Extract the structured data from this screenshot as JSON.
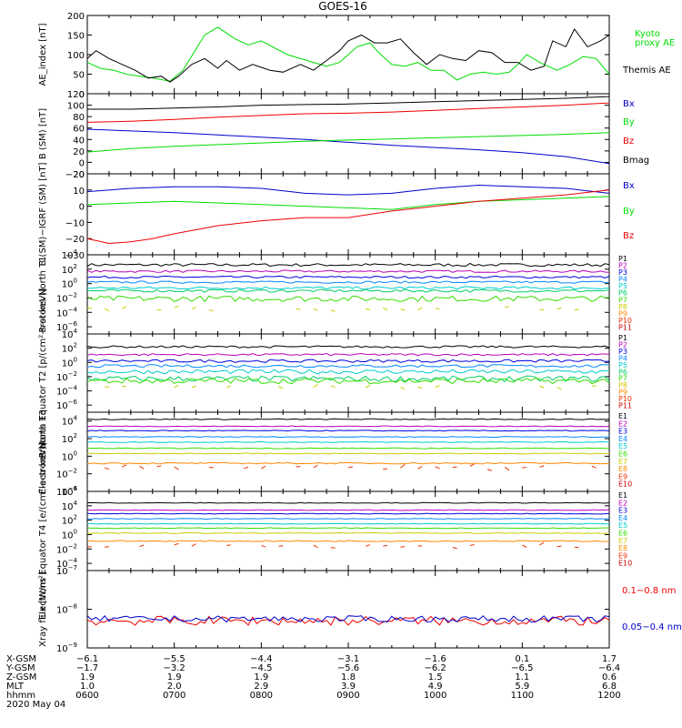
{
  "title": "GOES-16",
  "chart_data": [
    {
      "type": "line",
      "ylabel": "AE_index [nT]",
      "ylim": [
        0,
        200
      ],
      "yticks": [
        {
          "v": 200,
          "t": "200"
        },
        {
          "v": 150,
          "t": "150"
        },
        {
          "v": 100,
          "t": "100"
        },
        {
          "v": 50,
          "t": "50"
        },
        {
          "v": 0,
          "t": "0"
        }
      ],
      "series": [
        {
          "name": "Kyoto proxy AE",
          "color": "#00dd00",
          "x": [
            6.0,
            6.15,
            6.3,
            6.45,
            6.6,
            6.75,
            6.95,
            7.1,
            7.35,
            7.5,
            7.7,
            7.85,
            8.0,
            8.3,
            8.6,
            8.75,
            8.9,
            9.1,
            9.25,
            9.35,
            9.5,
            9.65,
            9.8,
            9.95,
            10.1,
            10.25,
            10.4,
            10.55,
            10.7,
            10.85,
            10.95,
            11.05,
            11.2,
            11.4,
            11.55,
            11.7,
            11.85,
            12.0
          ],
          "y": [
            80,
            65,
            60,
            50,
            45,
            40,
            32,
            60,
            150,
            170,
            140,
            125,
            135,
            100,
            80,
            70,
            80,
            120,
            130,
            105,
            75,
            70,
            80,
            60,
            60,
            35,
            50,
            55,
            50,
            55,
            75,
            100,
            80,
            60,
            75,
            95,
            90,
            50
          ]
        },
        {
          "name": "Themis AE",
          "color": "#000000",
          "x": [
            6.0,
            6.1,
            6.25,
            6.4,
            6.55,
            6.7,
            6.85,
            6.95,
            7.05,
            7.2,
            7.35,
            7.5,
            7.6,
            7.75,
            7.9,
            8.1,
            8.25,
            8.45,
            8.6,
            8.75,
            8.9,
            9.0,
            9.15,
            9.3,
            9.45,
            9.6,
            9.75,
            9.9,
            10.05,
            10.2,
            10.35,
            10.5,
            10.65,
            10.8,
            10.95,
            11.1,
            11.25,
            11.35,
            11.5,
            11.6,
            11.75,
            11.9,
            12.0
          ],
          "y": [
            90,
            110,
            90,
            75,
            60,
            40,
            45,
            30,
            45,
            75,
            90,
            65,
            85,
            60,
            75,
            60,
            55,
            75,
            60,
            85,
            110,
            135,
            150,
            130,
            130,
            140,
            105,
            75,
            100,
            90,
            85,
            110,
            105,
            80,
            80,
            60,
            70,
            135,
            120,
            165,
            120,
            135,
            150
          ]
        }
      ]
    },
    {
      "type": "line",
      "ylabel": "B (SM) [nT]",
      "ylim": [
        -20,
        120
      ],
      "yticks": [
        {
          "v": 120,
          "t": "120"
        },
        {
          "v": 100,
          "t": "100"
        },
        {
          "v": 80,
          "t": "80"
        },
        {
          "v": 60,
          "t": "60"
        },
        {
          "v": 40,
          "t": "40"
        },
        {
          "v": 20,
          "t": "20"
        },
        {
          "v": 0,
          "t": "0"
        },
        {
          "v": -20,
          "t": "−20"
        }
      ],
      "series": [
        {
          "name": "Bx",
          "color": "#0000cc",
          "x": [
            6.0,
            6.5,
            7.0,
            7.5,
            8.0,
            8.5,
            9.0,
            9.5,
            10.0,
            10.5,
            11.0,
            11.5,
            12.0
          ],
          "y": [
            58,
            55,
            52,
            48,
            44,
            40,
            35,
            30,
            26,
            22,
            17,
            10,
            -2
          ]
        },
        {
          "name": "By",
          "color": "#00dd00",
          "x": [
            6.0,
            6.5,
            7.0,
            7.5,
            8.0,
            8.5,
            9.0,
            9.5,
            10.0,
            10.5,
            11.0,
            11.5,
            12.0
          ],
          "y": [
            18,
            24,
            28,
            31,
            34,
            37,
            39,
            41,
            43,
            45,
            47,
            49,
            52
          ]
        },
        {
          "name": "Bz",
          "color": "#ee0000",
          "x": [
            6.0,
            6.5,
            7.0,
            7.5,
            8.0,
            8.5,
            9.0,
            9.5,
            10.0,
            10.5,
            11.0,
            11.5,
            12.0
          ],
          "y": [
            70,
            72,
            75,
            79,
            82,
            85,
            86,
            88,
            91,
            94,
            97,
            100,
            104
          ]
        },
        {
          "name": "Bmag",
          "color": "#000000",
          "x": [
            6.0,
            6.5,
            7.0,
            7.5,
            8.0,
            8.5,
            9.0,
            9.5,
            10.0,
            10.5,
            11.0,
            11.5,
            12.0
          ],
          "y": [
            93,
            93,
            95,
            97,
            100,
            101,
            102,
            104,
            106,
            108,
            110,
            112,
            115
          ]
        }
      ]
    },
    {
      "type": "line",
      "ylabel": "B (SM)−IGRF (SM) [nT]",
      "ylim": [
        -30,
        20
      ],
      "yticks": [
        {
          "v": 20,
          "t": "20"
        },
        {
          "v": 10,
          "t": "10"
        },
        {
          "v": 0,
          "t": "0"
        },
        {
          "v": -10,
          "t": "−10"
        },
        {
          "v": -20,
          "t": "−20"
        },
        {
          "v": -30,
          "t": "−30"
        }
      ],
      "series": [
        {
          "name": "Bx",
          "color": "#0000cc",
          "x": [
            6.0,
            6.5,
            7.0,
            7.5,
            8.0,
            8.5,
            9.0,
            9.5,
            10.0,
            10.5,
            11.0,
            11.5,
            12.0
          ],
          "y": [
            9,
            11,
            12,
            12,
            11,
            8,
            7,
            8,
            11,
            13,
            12,
            11,
            8
          ]
        },
        {
          "name": "By",
          "color": "#00dd00",
          "x": [
            6.0,
            6.5,
            7.0,
            7.5,
            8.0,
            8.5,
            9.0,
            9.5,
            10.0,
            10.5,
            11.0,
            11.5,
            12.0
          ],
          "y": [
            1,
            2,
            3,
            2,
            1,
            0,
            -1,
            -2,
            1,
            3,
            4,
            5,
            6
          ]
        },
        {
          "name": "Bz",
          "color": "#ee0000",
          "x": [
            6.0,
            6.25,
            6.5,
            6.75,
            7.0,
            7.5,
            8.0,
            8.5,
            9.0,
            9.5,
            10.0,
            10.5,
            11.0,
            11.5,
            12.0
          ],
          "y": [
            -20,
            -23,
            -22,
            -20,
            -17,
            -12,
            -9,
            -7,
            -7,
            -3,
            0,
            3,
            5,
            7,
            10
          ]
        }
      ]
    },
    {
      "type": "line",
      "log": true,
      "ylabel": "Protons North T1",
      "ylim": [
        -7,
        4
      ],
      "yticks": [
        {
          "v": 4,
          "t": "10",
          "e": "4"
        },
        {
          "v": 2,
          "t": "10",
          "e": "2"
        },
        {
          "v": 0,
          "t": "10",
          "e": "0"
        },
        {
          "v": -2,
          "t": "10",
          "e": "−2"
        },
        {
          "v": -4,
          "t": "10",
          "e": "−4"
        },
        {
          "v": -6,
          "t": "10",
          "e": "−6"
        }
      ],
      "channels": [
        {
          "name": "P1",
          "color": "#000000",
          "base": 2.6,
          "noise": 0.2
        },
        {
          "name": "P2",
          "color": "#bb00bb",
          "base": 1.7,
          "noise": 0.15
        },
        {
          "name": "P3",
          "color": "#0000dd",
          "base": 0.9,
          "noise": 0.15
        },
        {
          "name": "P4",
          "color": "#0088ff",
          "base": 0.2,
          "noise": 0.15
        },
        {
          "name": "P5",
          "color": "#00cccc",
          "base": -0.6,
          "noise": 0.2
        },
        {
          "name": "P6",
          "color": "#00cc66",
          "base": -1.0,
          "noise": 0.2
        },
        {
          "name": "P7",
          "color": "#33dd00",
          "base": -2.1,
          "noise": 0.4
        },
        {
          "name": "P8",
          "color": "#cccc00",
          "base": -3.5,
          "noise": 0.2,
          "sparse": true
        },
        {
          "name": "P9",
          "color": "#ff8800",
          "base": -4.5,
          "noise": 0.2,
          "none": true
        },
        {
          "name": "P10",
          "color": "#ee3300",
          "base": -5.5,
          "noise": 0.2,
          "none": true
        },
        {
          "name": "P11",
          "color": "#cc0000",
          "base": -6.5,
          "noise": 0.2,
          "none": true
        }
      ]
    },
    {
      "type": "line",
      "log": true,
      "ylabel": "Protons Equator T2 [p/(cm²-s-sr-keV)]",
      "ylim": [
        -7,
        4
      ],
      "yticks": [
        {
          "v": 4,
          "t": "10",
          "e": "4"
        },
        {
          "v": 2,
          "t": "10",
          "e": "2"
        },
        {
          "v": 0,
          "t": "10",
          "e": "0"
        },
        {
          "v": -2,
          "t": "10",
          "e": "−2"
        },
        {
          "v": -4,
          "t": "10",
          "e": "−4"
        },
        {
          "v": -6,
          "t": "10",
          "e": "−6"
        }
      ],
      "channels": [
        {
          "name": "P1",
          "color": "#000000",
          "base": 2.2,
          "noise": 0.15
        },
        {
          "name": "P2",
          "color": "#bb00bb",
          "base": 1.1,
          "noise": 0.15
        },
        {
          "name": "P3",
          "color": "#0000dd",
          "base": 0.2,
          "noise": 0.2
        },
        {
          "name": "P4",
          "color": "#0088ff",
          "base": -0.5,
          "noise": 0.2
        },
        {
          "name": "P5",
          "color": "#00cccc",
          "base": -1.3,
          "noise": 0.3
        },
        {
          "name": "P6",
          "color": "#00cc66",
          "base": -2.3,
          "noise": 0.4
        },
        {
          "name": "P7",
          "color": "#33dd00",
          "base": -2.6,
          "noise": 0.4
        },
        {
          "name": "P8",
          "color": "#cccc00",
          "base": -3.4,
          "noise": 0.2,
          "sparse": true
        },
        {
          "name": "P9",
          "color": "#ff8800",
          "base": -4.5,
          "noise": 0.2,
          "none": true
        },
        {
          "name": "P10",
          "color": "#ee3300",
          "base": -5.5,
          "noise": 0.2,
          "none": true
        },
        {
          "name": "P11",
          "color": "#cc0000",
          "base": -6.5,
          "noise": 0.2,
          "none": true
        }
      ]
    },
    {
      "type": "line",
      "log": true,
      "ylabel": "Electrons North T3",
      "ylim": [
        -4,
        5
      ],
      "yticks": [
        {
          "v": 4,
          "t": "10",
          "e": "4"
        },
        {
          "v": 2,
          "t": "10",
          "e": "2"
        },
        {
          "v": 0,
          "t": "10",
          "e": "0"
        },
        {
          "v": -2,
          "t": "10",
          "e": "−2"
        },
        {
          "v": -4,
          "t": "10",
          "e": "−4"
        }
      ],
      "channels": [
        {
          "name": "E1",
          "color": "#000000",
          "base": 4.2,
          "noise": 0.05
        },
        {
          "name": "E2",
          "color": "#bb00bb",
          "base": 3.4,
          "noise": 0.05
        },
        {
          "name": "E3",
          "color": "#0000dd",
          "base": 2.9,
          "noise": 0.05
        },
        {
          "name": "E4",
          "color": "#0088ff",
          "base": 2.2,
          "noise": 0.05
        },
        {
          "name": "E5",
          "color": "#00cccc",
          "base": 1.6,
          "noise": 0.05
        },
        {
          "name": "E6",
          "color": "#33dd00",
          "base": 0.9,
          "noise": 0.05
        },
        {
          "name": "E7",
          "color": "#cccc00",
          "base": 0.3,
          "noise": 0.05
        },
        {
          "name": "E8",
          "color": "#ff8800",
          "base": -0.8,
          "noise": 0.08
        },
        {
          "name": "E9",
          "color": "#ee3300",
          "base": -1.3,
          "noise": 0.2,
          "sparse": true
        },
        {
          "name": "E10",
          "color": "#cc0000",
          "base": -3.5,
          "noise": 0.2,
          "none": true
        }
      ]
    },
    {
      "type": "line",
      "log": true,
      "ylabel": "Electrons Equator T4 [e/(cm²-s-sr-keV)]",
      "ylim": [
        -5,
        6
      ],
      "yticks": [
        {
          "v": 6,
          "t": "10",
          "e": "6"
        },
        {
          "v": 4,
          "t": "10",
          "e": "4"
        },
        {
          "v": 2,
          "t": "10",
          "e": "2"
        },
        {
          "v": 0,
          "t": "10",
          "e": "0"
        },
        {
          "v": -2,
          "t": "10",
          "e": "−2"
        },
        {
          "v": -4,
          "t": "10",
          "e": "−4"
        }
      ],
      "channels": [
        {
          "name": "E1",
          "color": "#000000",
          "base": 4.4,
          "noise": 0.05
        },
        {
          "name": "E2",
          "color": "#bb00bb",
          "base": 3.4,
          "noise": 0.05
        },
        {
          "name": "E3",
          "color": "#0000dd",
          "base": 2.9,
          "noise": 0.05
        },
        {
          "name": "E4",
          "color": "#0088ff",
          "base": 2.2,
          "noise": 0.05
        },
        {
          "name": "E5",
          "color": "#00cccc",
          "base": 1.5,
          "noise": 0.05
        },
        {
          "name": "E6",
          "color": "#33dd00",
          "base": 0.9,
          "noise": 0.05
        },
        {
          "name": "E7",
          "color": "#cccc00",
          "base": 0.2,
          "noise": 0.05
        },
        {
          "name": "E8",
          "color": "#ff8800",
          "base": -0.9,
          "noise": 0.08
        },
        {
          "name": "E9",
          "color": "#ee3300",
          "base": -1.6,
          "noise": 0.2,
          "sparse": true
        },
        {
          "name": "E10",
          "color": "#cc0000",
          "base": -3.5,
          "noise": 0.2,
          "none": true
        }
      ]
    },
    {
      "type": "line",
      "log": true,
      "ylabel": "Xray flux [W/m²]",
      "ylim": [
        -9,
        -7
      ],
      "yticks": [
        {
          "v": -7,
          "t": "10",
          "e": "−7"
        },
        {
          "v": -8,
          "t": "10",
          "e": "−8"
        },
        {
          "v": -9,
          "t": "10",
          "e": "−9"
        }
      ],
      "series": [
        {
          "name": "0.1−0.8 nm",
          "color": "#ee0000",
          "base": -8.3,
          "noise": 0.12
        },
        {
          "name": "0.05−0.4 nm",
          "color": "#0000cc",
          "base": -8.25,
          "noise": 0.08
        }
      ]
    }
  ],
  "legends": [
    {
      "panel": 0,
      "items": [
        {
          "text": "Kyoto",
          "color": "#00dd00"
        },
        {
          "text": "proxy AE",
          "color": "#00dd00"
        },
        {
          "text": "Themis AE",
          "color": "#000000"
        }
      ]
    },
    {
      "panel": 1,
      "items": [
        {
          "text": "Bx",
          "color": "#0000cc"
        },
        {
          "text": "By",
          "color": "#00dd00"
        },
        {
          "text": "Bz",
          "color": "#ee0000"
        },
        {
          "text": "Bmag",
          "color": "#000000"
        }
      ]
    },
    {
      "panel": 2,
      "items": [
        {
          "text": "Bx",
          "color": "#0000cc"
        },
        {
          "text": "By",
          "color": "#00dd00"
        },
        {
          "text": "Bz",
          "color": "#ee0000"
        }
      ]
    },
    {
      "panel": 7,
      "items": [
        {
          "text": "0.1−0.8 nm",
          "color": "#ee0000"
        },
        {
          "text": "0.05−0.4 nm",
          "color": "#0000cc"
        }
      ]
    }
  ],
  "x_axis": {
    "hours": [
      6,
      7,
      8,
      9,
      10,
      11,
      12
    ],
    "rows": [
      {
        "label": "X-GSM",
        "values": [
          "−6.1",
          "−5.5",
          "−4.4",
          "−3.1",
          "−1.6",
          "0.1",
          "1.7"
        ]
      },
      {
        "label": "Y-GSM",
        "values": [
          "−1.7",
          "−3.2",
          "−4.5",
          "−5.6",
          "−6.2",
          "−6.5",
          "−6.4"
        ]
      },
      {
        "label": "Z-GSM",
        "values": [
          "1.9",
          "1.9",
          "1.9",
          "1.8",
          "1.5",
          "1.1",
          "0.6"
        ]
      },
      {
        "label": "MLT",
        "values": [
          "1.0",
          "2.0",
          "2.9",
          "3.9",
          "4.9",
          "5.9",
          "6.8"
        ]
      },
      {
        "label": "hhmm",
        "values": [
          "0600",
          "0700",
          "0800",
          "0900",
          "1000",
          "1100",
          "1200"
        ]
      }
    ],
    "date": "2020 May 04"
  }
}
